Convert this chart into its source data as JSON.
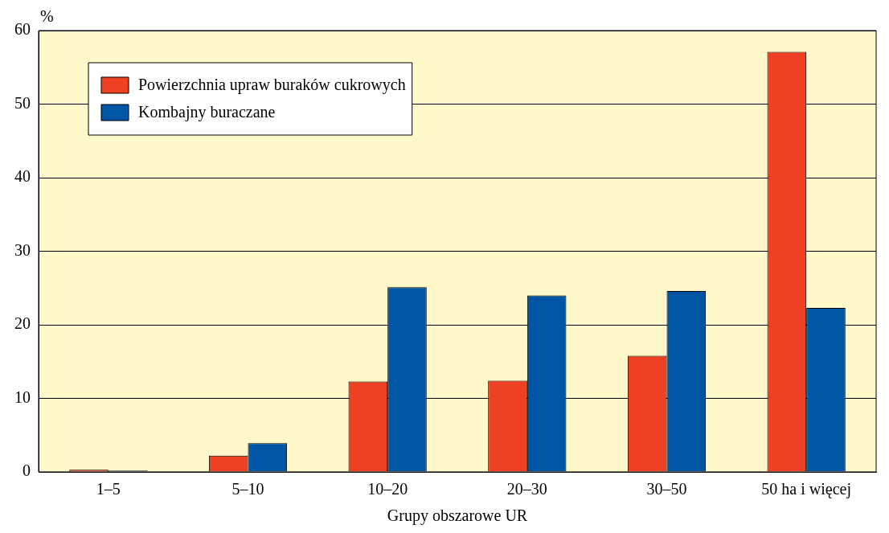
{
  "chart_data": {
    "type": "bar",
    "ylabel": "%",
    "xlabel": "Grupy obszarowe UR",
    "categories": [
      "1–5",
      "5–10",
      "10–20",
      "20–30",
      "30–50",
      "50 ha i więcej"
    ],
    "series": [
      {
        "name": "Powierzchnia upraw buraków cukrowych",
        "color": "#ee4023",
        "values": [
          0.3,
          2.2,
          12.3,
          12.4,
          15.8,
          57.1
        ]
      },
      {
        "name": "Kombajny buraczane",
        "color": "#0055a5",
        "values": [
          0.2,
          3.9,
          25.1,
          24.0,
          24.6,
          22.3
        ]
      }
    ],
    "ylim": [
      0,
      60
    ],
    "yticks": [
      0,
      10,
      20,
      30,
      40,
      50,
      60
    ],
    "grid": "y",
    "legend": "top left"
  }
}
